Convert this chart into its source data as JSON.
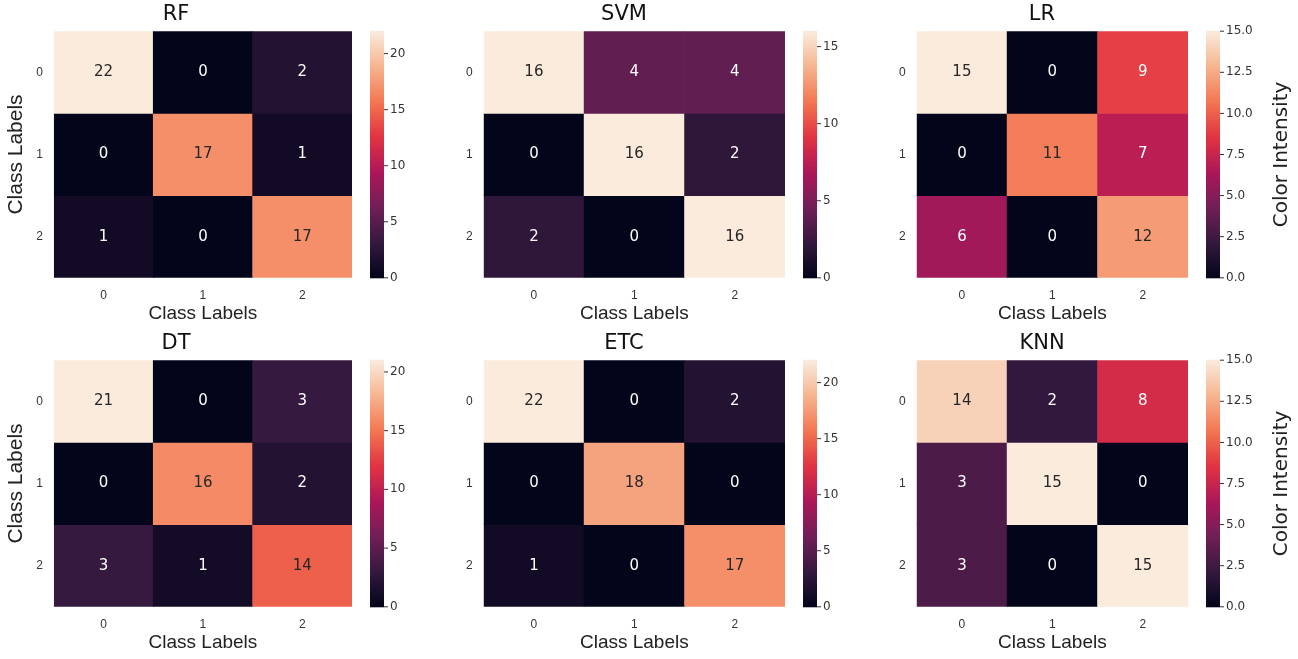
{
  "chart_data": [
    {
      "type": "heatmap",
      "title": "RF",
      "xlabel": "Class Labels",
      "ylabel": "Class Labels",
      "categories": [
        "0",
        "1",
        "2"
      ],
      "y_categories": [
        "0",
        "1",
        "2"
      ],
      "cells": [
        [
          22,
          0,
          2
        ],
        [
          0,
          17,
          1
        ],
        [
          1,
          0,
          17
        ]
      ],
      "clim": [
        0,
        22
      ],
      "cticks": [
        0,
        5,
        10,
        15,
        20
      ],
      "data_labels": true
    },
    {
      "type": "heatmap",
      "title": "SVM",
      "xlabel": "Class Labels",
      "categories": [
        "0",
        "1",
        "2"
      ],
      "y_categories": [
        "0",
        "1",
        "2"
      ],
      "cells": [
        [
          16,
          4,
          4
        ],
        [
          0,
          16,
          2
        ],
        [
          2,
          0,
          16
        ]
      ],
      "clim": [
        0,
        16
      ],
      "cticks": [
        0,
        5,
        10,
        15
      ],
      "data_labels": true
    },
    {
      "type": "heatmap",
      "title": "LR",
      "xlabel": "Class Labels",
      "clabel": "Color Intensity",
      "categories": [
        "0",
        "1",
        "2"
      ],
      "y_categories": [
        "0",
        "1",
        "2"
      ],
      "cells": [
        [
          15,
          0,
          9
        ],
        [
          0,
          11,
          7
        ],
        [
          6,
          0,
          12
        ]
      ],
      "clim": [
        0,
        15
      ],
      "cticks": [
        {
          "value": 0,
          "label": "0.0"
        },
        {
          "value": 2.5,
          "label": "2.5"
        },
        {
          "value": 5,
          "label": "5.0"
        },
        {
          "value": 7.5,
          "label": "7.5"
        },
        {
          "value": 10,
          "label": "10.0"
        },
        {
          "value": 12.5,
          "label": "12.5"
        },
        {
          "value": 15,
          "label": "15.0"
        }
      ],
      "data_labels": true
    },
    {
      "type": "heatmap",
      "title": "DT",
      "xlabel": "Class Labels",
      "ylabel": "Class Labels",
      "categories": [
        "0",
        "1",
        "2"
      ],
      "y_categories": [
        "0",
        "1",
        "2"
      ],
      "cells": [
        [
          21,
          0,
          3
        ],
        [
          0,
          16,
          2
        ],
        [
          3,
          1,
          14
        ]
      ],
      "clim": [
        0,
        21
      ],
      "cticks": [
        0,
        5,
        10,
        15,
        20
      ],
      "data_labels": true
    },
    {
      "type": "heatmap",
      "title": "ETC",
      "xlabel": "Class Labels",
      "categories": [
        "0",
        "1",
        "2"
      ],
      "y_categories": [
        "0",
        "1",
        "2"
      ],
      "cells": [
        [
          22,
          0,
          2
        ],
        [
          0,
          18,
          0
        ],
        [
          1,
          0,
          17
        ]
      ],
      "clim": [
        0,
        22
      ],
      "cticks": [
        0,
        5,
        10,
        15,
        20
      ],
      "data_labels": true
    },
    {
      "type": "heatmap",
      "title": "KNN",
      "xlabel": "Class Labels",
      "clabel": "Color Intensity",
      "categories": [
        "0",
        "1",
        "2"
      ],
      "y_categories": [
        "0",
        "1",
        "2"
      ],
      "cells": [
        [
          14,
          2,
          8
        ],
        [
          3,
          15,
          0
        ],
        [
          3,
          0,
          15
        ]
      ],
      "clim": [
        0,
        15
      ],
      "cticks": [
        {
          "value": 0,
          "label": "0.0"
        },
        {
          "value": 2.5,
          "label": "2.5"
        },
        {
          "value": 5,
          "label": "5.0"
        },
        {
          "value": 7.5,
          "label": "7.5"
        },
        {
          "value": 10,
          "label": "10.0"
        },
        {
          "value": 12.5,
          "label": "12.5"
        },
        {
          "value": 15,
          "label": "15.0"
        }
      ],
      "data_labels": true
    }
  ]
}
